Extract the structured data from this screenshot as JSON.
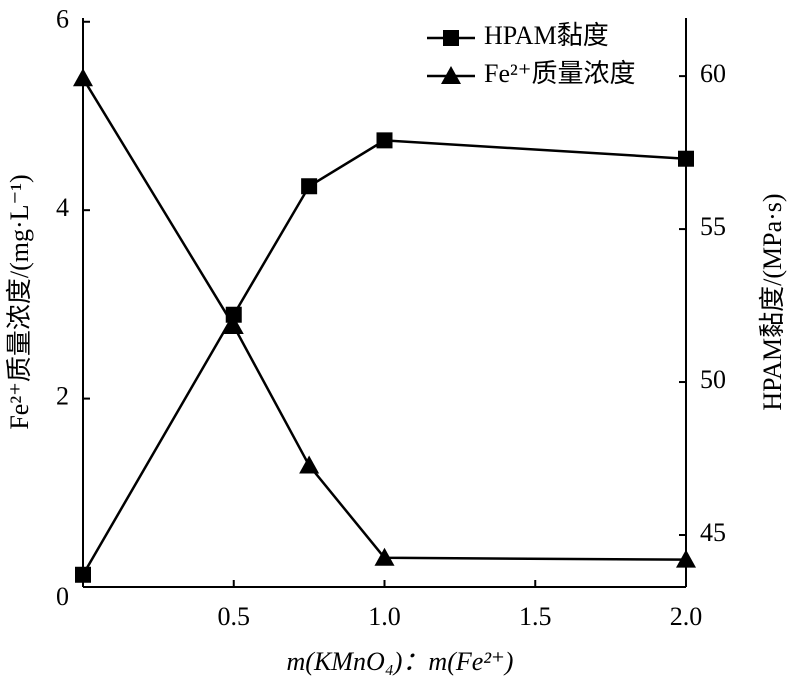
{
  "chart_data": {
    "type": "line",
    "x_label": "m(KMnO₄)：m(Fe²⁺)",
    "y_label": "Fe²⁺质量浓度/(mg·L⁻¹)",
    "y2_label": "HPAM黏度/(MPa·s)",
    "x": [
      0,
      0.5,
      0.75,
      1.0,
      2.0
    ],
    "xlim": [
      0,
      2
    ],
    "xticks": [
      0.5,
      {
        "value": 1,
        "label": "1.0"
      },
      1.5,
      {
        "value": 2,
        "label": "2.0"
      }
    ],
    "ylim": [
      0,
      6.04
    ],
    "yticks": [
      0,
      2,
      4,
      6
    ],
    "y2lim": [
      43.3,
      61.9
    ],
    "y2ticks": [
      45,
      50,
      55,
      60
    ],
    "legend": "upper right",
    "series": [
      {
        "name": "HPAM黏度",
        "color": "#000000",
        "marker": "square",
        "axis": "y2",
        "values": [
          43.7,
          52.2,
          56.4,
          57.9,
          57.3
        ]
      },
      {
        "name": "Fe²⁺质量浓度",
        "color": "#000000",
        "marker": "triangle",
        "values": [
          5.4,
          2.77,
          1.29,
          0.31,
          0.29
        ]
      }
    ]
  }
}
